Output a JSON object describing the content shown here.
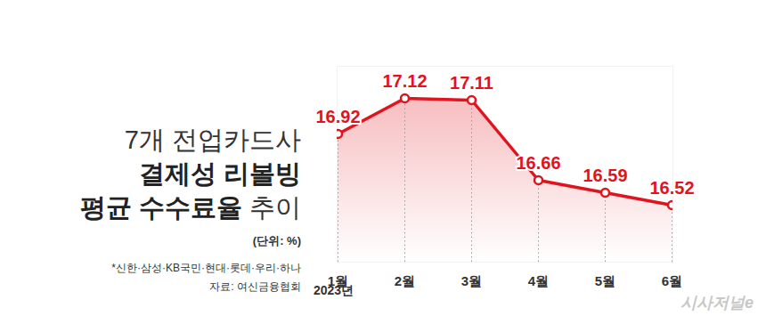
{
  "chart_data": {
    "type": "line",
    "title": "7개 전업카드사\n결제성 리볼빙\n평균 수수료율 추이",
    "unit": "(단위: %)",
    "categories": [
      "1월",
      "2월",
      "3월",
      "4월",
      "5월",
      "6월"
    ],
    "x_note": "2023년",
    "values": [
      16.92,
      17.12,
      17.11,
      16.66,
      16.59,
      16.52
    ],
    "color": "#e1141e",
    "ylim": [
      16.2,
      17.3
    ],
    "tick_labels": "x",
    "data_labels": true,
    "marker": "circle",
    "note": "*신한·삼성·KB국민·현대·롯데·우리·하나",
    "source": "자료: 여신금융협회",
    "credit": "시사저널e"
  }
}
